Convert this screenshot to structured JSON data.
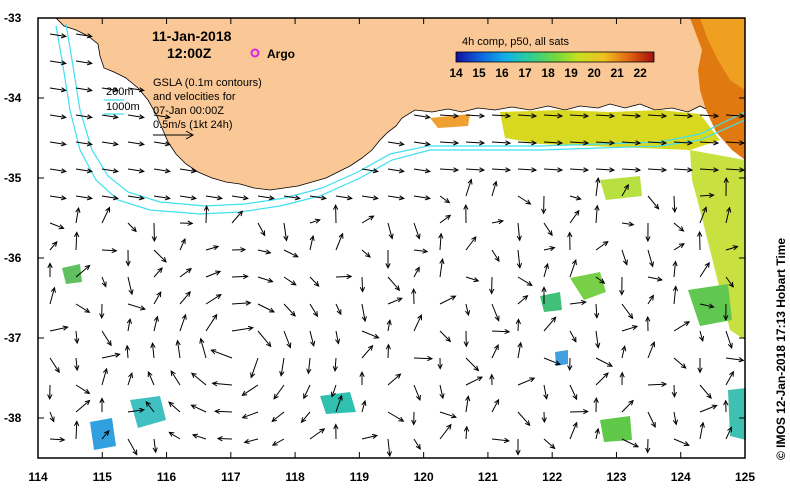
{
  "title": {
    "date": "11-Jan-2018",
    "time": "12:00Z"
  },
  "legend": {
    "argo_label": "Argo",
    "argo_color": "#e020e0",
    "gsla_text": "GSLA (0.1m contours)\nand velocities for\n07-Jan 00:00Z\n0.5m/s (1kt 24h)",
    "depth_200": "200m",
    "depth_1000": "1000m"
  },
  "colorbar": {
    "title": "4h comp, p50, all sats",
    "ticks": [
      "14",
      "15",
      "16",
      "17",
      "18",
      "19",
      "20",
      "21",
      "22"
    ],
    "range": [
      14,
      22.6
    ]
  },
  "axes": {
    "x_ticks": [
      "114",
      "115",
      "116",
      "117",
      "118",
      "119",
      "120",
      "121",
      "122",
      "123",
      "124",
      "125"
    ],
    "y_ticks": [
      "-33",
      "-34",
      "-35",
      "-36",
      "-37",
      "-38"
    ],
    "lon_range": [
      114,
      125
    ],
    "lat_range": [
      -38.5,
      -33
    ]
  },
  "credit": "© IMOS 12-Jan-2018 17:13 Hobart Time",
  "colors": {
    "land": "#fac896",
    "contour": "#40e0f0",
    "frame": "#000000"
  }
}
